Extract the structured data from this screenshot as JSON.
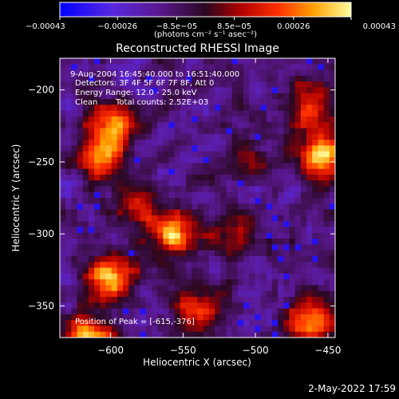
{
  "chart_data": {
    "type": "heatmap",
    "title": "Reconstructed RHESSI Image",
    "xlabel": "Heliocentric X (arcsec)",
    "ylabel": "Heliocentric Y (arcsec)",
    "xlim": [
      -635,
      -445
    ],
    "ylim": [
      -372,
      -178
    ],
    "x_ticks": [
      -600,
      -550,
      -500,
      -450
    ],
    "y_ticks": [
      -200,
      -250,
      -300,
      -350
    ],
    "x_tick_labels": [
      "−600",
      "−550",
      "−500",
      "−450"
    ],
    "y_tick_labels": [
      "−200",
      "−250",
      "−300",
      "−350"
    ],
    "colorbar": {
      "range": [
        -0.00043,
        0.00043
      ],
      "ticks": [
        -0.00043,
        -0.00026,
        -8.5e-05,
        8.5e-05,
        0.00026,
        0.00043
      ],
      "tick_labels": [
        "−0.00043",
        "−0.00026",
        "−8.5e−05",
        "8.5e−05",
        "0.00026",
        "0.00043"
      ],
      "unit_label": "(photons cm⁻² s⁻¹ asec⁻²)"
    },
    "sources": [
      {
        "x": -615,
        "y": -376,
        "peak": 1.0
      },
      {
        "x": -598,
        "y": -222,
        "peak": 0.7
      },
      {
        "x": -606,
        "y": -245,
        "peak": 0.75
      },
      {
        "x": -555,
        "y": -300,
        "peak": 0.95
      },
      {
        "x": -600,
        "y": -330,
        "peak": 0.85
      },
      {
        "x": -455,
        "y": -245,
        "peak": 0.95
      },
      {
        "x": -462,
        "y": -210,
        "peak": 0.55
      },
      {
        "x": -462,
        "y": -360,
        "peak": 0.75
      },
      {
        "x": -540,
        "y": -350,
        "peak": 0.55
      },
      {
        "x": -515,
        "y": -300,
        "peak": 0.4
      },
      {
        "x": -505,
        "y": -245,
        "peak": 0.35
      },
      {
        "x": -580,
        "y": -280,
        "peak": 0.4
      }
    ],
    "annotations": {
      "time_range": "9-Aug-2004 16:45:40.000 to 16:51:40.000",
      "detectors": "Detectors: 3F 4F 5F 6F 7F 8F, Att 0",
      "energy": "Energy Range: 12.0 - 25.0 keV",
      "clean": "Clean",
      "total_counts": "Total counts: 2.52E+03",
      "peak_position": "Position of Peak = [-615,-376]"
    }
  },
  "timestamp": "2-May-2022 17:59"
}
